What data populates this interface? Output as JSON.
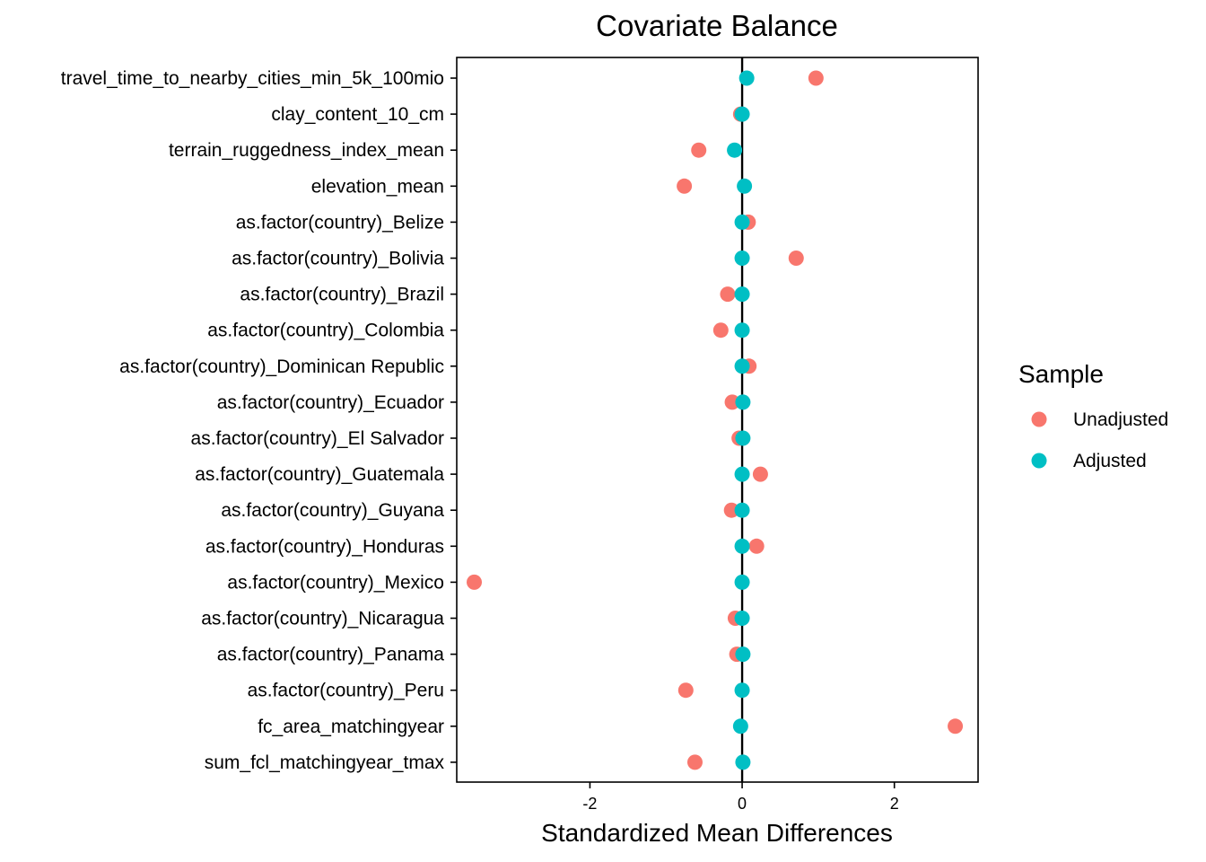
{
  "chart_data": {
    "type": "scatter",
    "title": "Covariate Balance",
    "xlabel": "Standardized Mean Differences",
    "ylabel": "",
    "xlim": [
      -3.75,
      3.1
    ],
    "xticks": [
      -2,
      0,
      2
    ],
    "reference_line_x": 0,
    "grid": false,
    "legend_position": "right",
    "legend_title": "Sample",
    "categories": [
      "travel_time_to_nearby_cities_min_5k_100mio",
      "clay_content_10_cm",
      "terrain_ruggedness_index_mean",
      "elevation_mean",
      "as.factor(country)_Belize",
      "as.factor(country)_Bolivia",
      "as.factor(country)_Brazil",
      "as.factor(country)_Colombia",
      "as.factor(country)_Dominican Republic",
      "as.factor(country)_Ecuador",
      "as.factor(country)_El Salvador",
      "as.factor(country)_Guatemala",
      "as.factor(country)_Guyana",
      "as.factor(country)_Honduras",
      "as.factor(country)_Mexico",
      "as.factor(country)_Nicaragua",
      "as.factor(country)_Panama",
      "as.factor(country)_Peru",
      "fc_area_matchingyear",
      "sum_fcl_matchingyear_tmax"
    ],
    "series": [
      {
        "name": "Unadjusted",
        "color": "#F8766D",
        "values": [
          0.97,
          -0.02,
          -0.57,
          -0.76,
          0.08,
          0.71,
          -0.19,
          -0.28,
          0.09,
          -0.13,
          -0.04,
          0.24,
          -0.14,
          0.19,
          -3.52,
          -0.09,
          -0.07,
          -0.74,
          2.8,
          -0.62
        ]
      },
      {
        "name": "Adjusted",
        "color": "#00BFC4",
        "values": [
          0.06,
          0.0,
          -0.1,
          0.03,
          0.0,
          0.0,
          0.0,
          0.0,
          0.0,
          0.01,
          0.01,
          0.0,
          0.0,
          0.0,
          0.0,
          0.0,
          0.01,
          0.0,
          -0.02,
          0.01
        ]
      }
    ]
  }
}
